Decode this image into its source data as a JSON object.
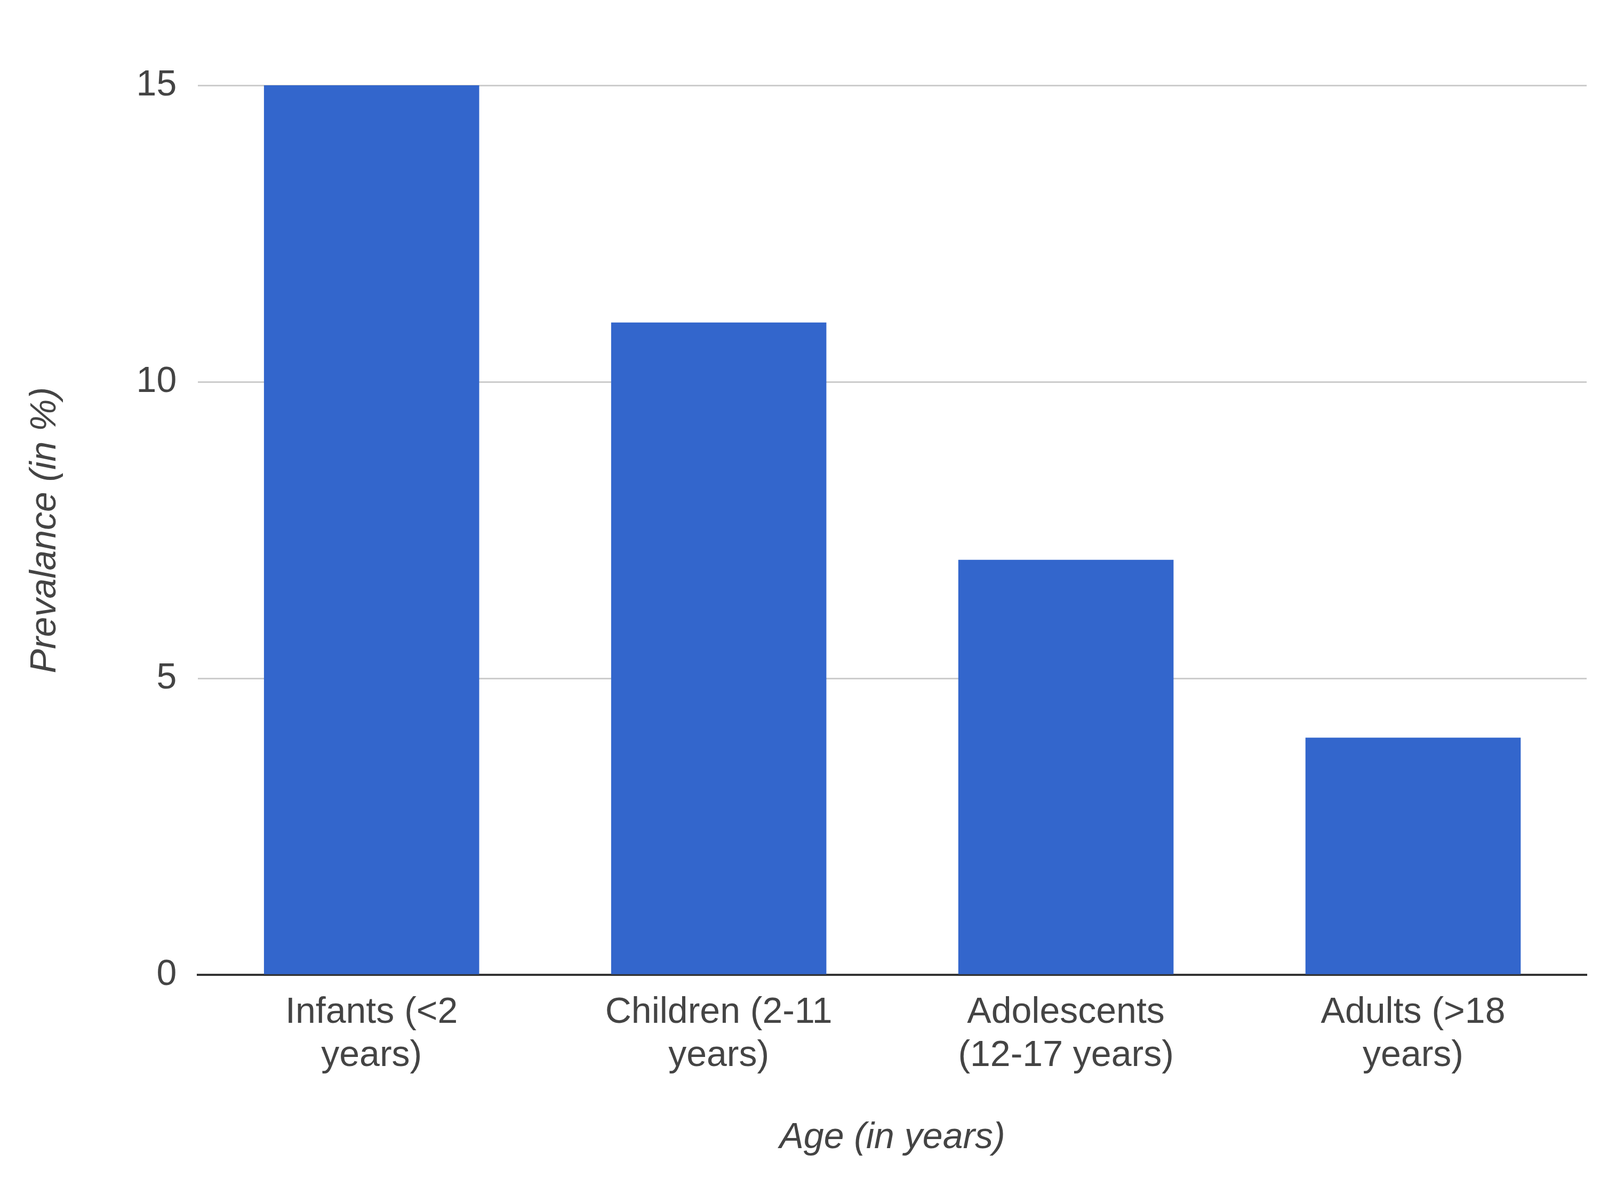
{
  "chart_data": {
    "type": "bar",
    "x_label": "Age (in years)",
    "y_label": "Prevalance (in %)",
    "categories": [
      "Infants (<2 years)",
      "Children (2-11 years)",
      "Adolescents (12-17 years)",
      "Adults (>18 years)"
    ],
    "values": [
      15,
      11,
      7,
      4
    ],
    "color": "#3366cc",
    "ylim": [
      0,
      15
    ],
    "yticks": [
      0,
      5,
      10,
      15
    ],
    "grid": true
  }
}
